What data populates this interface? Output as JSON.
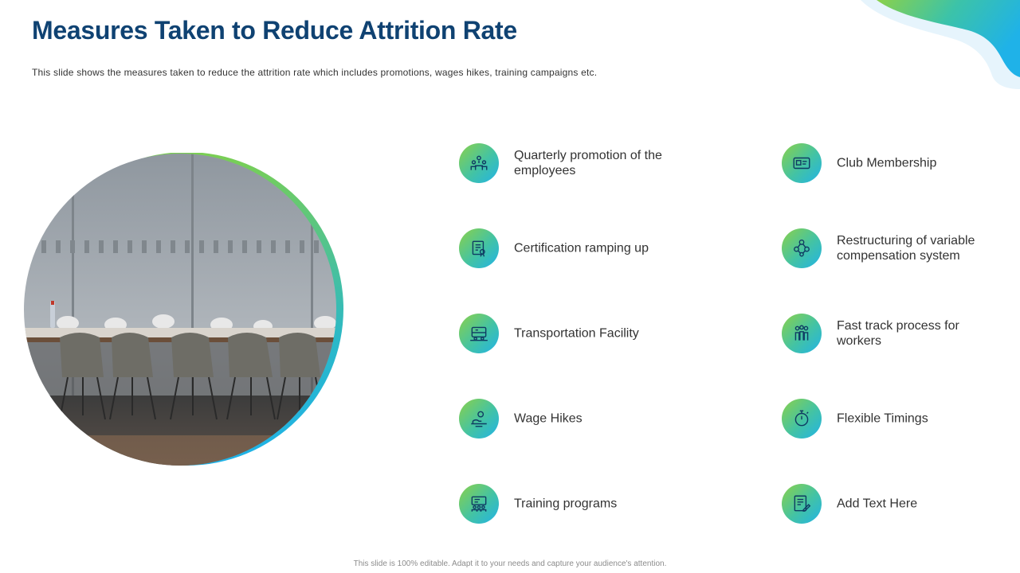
{
  "slide": {
    "title": "Measures Taken to Reduce Attrition Rate",
    "subtitle": "This slide shows the measures taken to reduce the attrition rate which includes promotions, wages hikes, training campaigns etc.",
    "footer": "This slide is 100% editable. Adapt it to your needs and capture your audience's attention."
  },
  "colors": {
    "title": "#0f4272",
    "gradient_start": "#8bd14a",
    "gradient_end": "#22b3e6"
  },
  "measures": {
    "left": [
      {
        "label": "Quarterly  promotion of the employees",
        "icon": "people-promotion-icon"
      },
      {
        "label": "Certification ramping up",
        "icon": "certificate-icon"
      },
      {
        "label": "Transportation  Facility",
        "icon": "bus-icon"
      },
      {
        "label": "Wage Hikes",
        "icon": "money-hand-icon"
      },
      {
        "label": "Training programs",
        "icon": "training-board-icon"
      }
    ],
    "right": [
      {
        "label": "Club Membership",
        "icon": "membership-card-icon"
      },
      {
        "label": "Restructuring  of variable compensation system",
        "icon": "gears-network-icon"
      },
      {
        "label": "Fast track process for workers",
        "icon": "workers-group-icon"
      },
      {
        "label": "Flexible Timings",
        "icon": "stopwatch-icon"
      },
      {
        "label": "Add Text Here",
        "icon": "document-edit-icon"
      }
    ]
  }
}
